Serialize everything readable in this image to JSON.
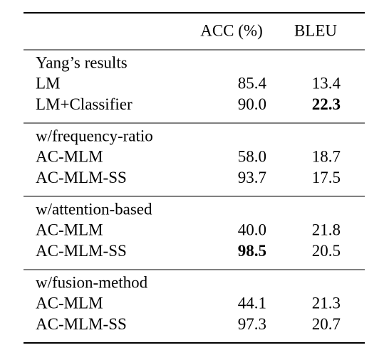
{
  "table": {
    "header": [
      "",
      "ACC (%)",
      "BLEU"
    ],
    "groups": [
      {
        "title": "Yang’s results",
        "rows": [
          {
            "cells": [
              "LM",
              "85.4",
              "13.4"
            ]
          },
          {
            "cells": [
              "LM+Classifier",
              "90.0",
              "22.3"
            ],
            "bold": [
              false,
              false,
              true
            ]
          }
        ]
      },
      {
        "title": "w/frequency-ratio",
        "rows": [
          {
            "cells": [
              "AC-MLM",
              "58.0",
              "18.7"
            ]
          },
          {
            "cells": [
              "AC-MLM-SS",
              "93.7",
              "17.5"
            ]
          }
        ]
      },
      {
        "title": "w/attention-based",
        "rows": [
          {
            "cells": [
              "AC-MLM",
              "40.0",
              "21.8"
            ]
          },
          {
            "cells": [
              "AC-MLM-SS",
              "98.5",
              "20.5"
            ],
            "bold": [
              false,
              true,
              false
            ]
          }
        ]
      },
      {
        "title": "w/fusion-method",
        "rows": [
          {
            "cells": [
              "AC-MLM",
              "44.1",
              "21.3"
            ]
          },
          {
            "cells": [
              "AC-MLM-SS",
              "97.3",
              "20.7"
            ]
          }
        ]
      }
    ]
  }
}
